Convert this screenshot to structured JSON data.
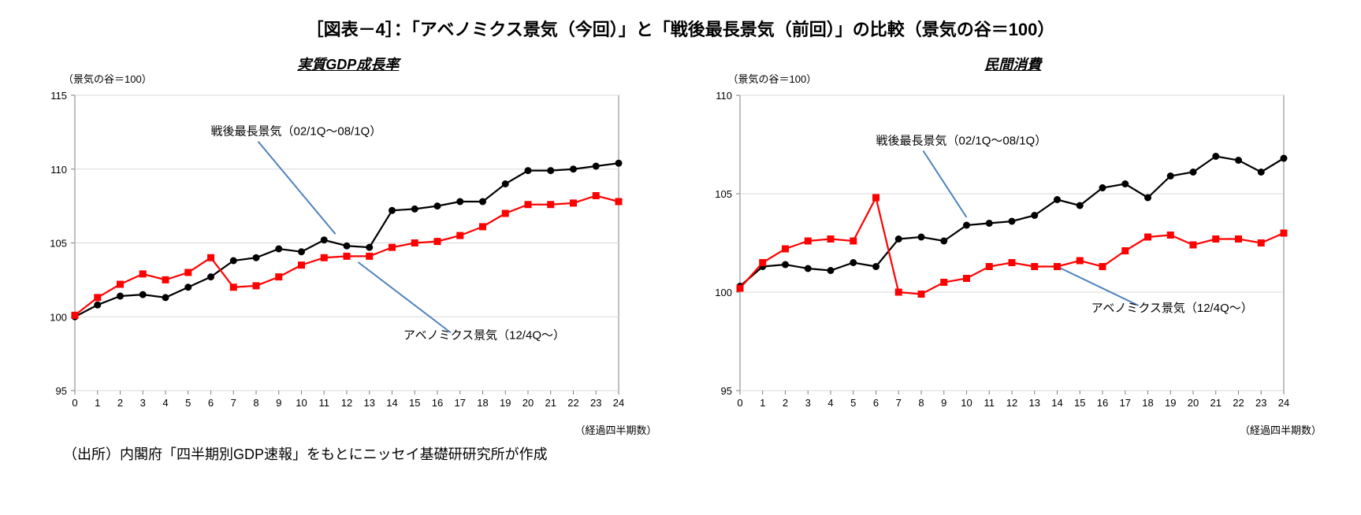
{
  "main_title": "［図表－4］：「アベノミクス景気（今回）」と「戦後最長景気（前回）」の比較（景気の谷＝100）",
  "source": "（出所）内閣府「四半期別GDP速報」をもとにニッセイ基礎研研究所が作成",
  "charts": [
    {
      "subtitle": "実質GDP成長率",
      "y_axis_label": "（景気の谷＝100）",
      "x_axis_label": "（経過四半期数）",
      "ylim": [
        95,
        115
      ],
      "ytick_step": 5,
      "xlim": [
        0,
        24
      ],
      "xtick_step": 1,
      "grid_color": "#d9d9d9",
      "axis_color": "#7f7f7f",
      "background": "#ffffff",
      "label_fontsize": 13,
      "series": [
        {
          "name": "戦後最長景気（02/1Q～08/1Q）",
          "color": "#000000",
          "marker": "circle",
          "marker_size": 4.5,
          "line_width": 2.2,
          "values": [
            100.0,
            100.8,
            101.4,
            101.5,
            101.3,
            102.0,
            102.7,
            103.8,
            104.0,
            104.6,
            104.4,
            105.2,
            104.8,
            104.7,
            107.2,
            107.3,
            107.5,
            107.8,
            107.8,
            109.0,
            109.9,
            109.9,
            110.0,
            110.2,
            110.4
          ]
        },
        {
          "name": "アベノミクス景気（12/4Q～）",
          "color": "#ff0000",
          "marker": "square",
          "marker_size": 4.5,
          "line_width": 2.2,
          "values": [
            100.1,
            101.3,
            102.2,
            102.9,
            102.5,
            103.0,
            104.0,
            102.0,
            102.1,
            102.7,
            103.5,
            104.0,
            104.1,
            104.1,
            104.7,
            105.0,
            105.1,
            105.5,
            106.1,
            107.0,
            107.6,
            107.6,
            107.7,
            108.2,
            107.8
          ]
        }
      ],
      "annotations": [
        {
          "text": "戦後最長景気（02/1Q～08/1Q）",
          "tx": 6,
          "ty": 112.3,
          "ax": 11.5,
          "ay": 105.6,
          "color": "#4f81bd"
        },
        {
          "text": "アベノミクス景気（12/4Q～）",
          "tx": 14.5,
          "ty": 98.5,
          "ax": 12.5,
          "ay": 103.7,
          "color": "#4f81bd"
        }
      ]
    },
    {
      "subtitle": "民間消費",
      "y_axis_label": "（景気の谷＝100）",
      "x_axis_label": "（経過四半期数）",
      "ylim": [
        95,
        110
      ],
      "ytick_step": 5,
      "xlim": [
        0,
        24
      ],
      "xtick_step": 1,
      "grid_color": "#d9d9d9",
      "axis_color": "#7f7f7f",
      "background": "#ffffff",
      "label_fontsize": 13,
      "series": [
        {
          "name": "戦後最長景気（02/1Q～08/1Q）",
          "color": "#000000",
          "marker": "circle",
          "marker_size": 4.5,
          "line_width": 2.2,
          "values": [
            100.3,
            101.3,
            101.4,
            101.2,
            101.1,
            101.5,
            101.3,
            102.7,
            102.8,
            102.6,
            103.4,
            103.5,
            103.6,
            103.9,
            104.7,
            104.4,
            105.3,
            105.5,
            104.8,
            105.9,
            106.1,
            106.9,
            106.7,
            106.1,
            106.8
          ]
        },
        {
          "name": "アベノミクス景気（12/4Q～）",
          "color": "#ff0000",
          "marker": "square",
          "marker_size": 4.5,
          "line_width": 2.2,
          "values": [
            100.2,
            101.5,
            102.2,
            102.6,
            102.7,
            102.6,
            104.8,
            100.0,
            99.9,
            100.5,
            100.7,
            101.3,
            101.5,
            101.3,
            101.3,
            101.6,
            101.3,
            102.1,
            102.8,
            102.9,
            102.4,
            102.7,
            102.7,
            102.5,
            103.0
          ]
        }
      ],
      "annotations": [
        {
          "text": "戦後最長景気（02/1Q～08/1Q）",
          "tx": 6,
          "ty": 107.5,
          "ax": 10,
          "ay": 103.8,
          "color": "#4f81bd"
        },
        {
          "text": "アベノミクス景気（12/4Q～）",
          "tx": 15.5,
          "ty": 99.0,
          "ax": 14,
          "ay": 101.3,
          "color": "#4f81bd"
        }
      ]
    }
  ]
}
